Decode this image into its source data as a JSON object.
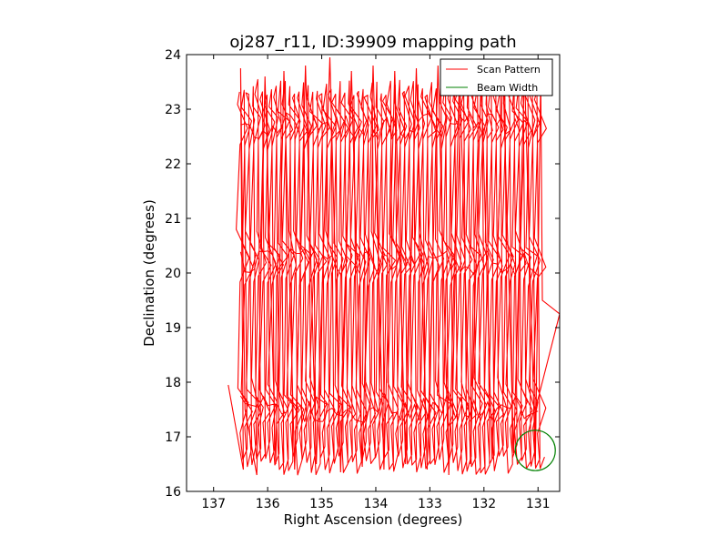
{
  "chart_data": {
    "type": "line",
    "title": "oj287_r11, ID:39909 mapping path",
    "xlabel": "Right Ascension (degrees)",
    "ylabel": "Declination (degrees)",
    "xlim": [
      137.5,
      130.6
    ],
    "ylim": [
      16,
      24
    ],
    "x_inverted": true,
    "xticks": [
      137,
      136,
      135,
      134,
      133,
      132,
      131
    ],
    "yticks": [
      16,
      17,
      18,
      19,
      20,
      21,
      22,
      23,
      24
    ],
    "grid": false,
    "legend_position": "top-right",
    "legend": [
      "Scan Pattern",
      "Beam Width"
    ],
    "series": [
      {
        "name": "Scan Pattern",
        "color": "#ff0000",
        "style": "raster scan",
        "ra_range": [
          136.5,
          131.0
        ],
        "dec_range": [
          16.3,
          23.9
        ],
        "leg_count": 66,
        "points": [
          [
            136.73,
            17.95
          ],
          [
            136.45,
            16.4
          ],
          [
            136.5,
            23.75
          ],
          [
            136.42,
            17.5
          ],
          [
            136.2,
            16.3
          ],
          [
            136.05,
            23.6
          ],
          [
            135.85,
            16.5
          ],
          [
            135.7,
            23.7
          ],
          [
            135.5,
            16.4
          ],
          [
            135.3,
            23.8
          ],
          [
            135.1,
            16.5
          ],
          [
            134.85,
            23.95
          ],
          [
            134.65,
            16.35
          ],
          [
            134.45,
            23.7
          ],
          [
            134.25,
            16.45
          ],
          [
            134.05,
            23.8
          ],
          [
            133.85,
            16.4
          ],
          [
            133.65,
            23.7
          ],
          [
            133.45,
            16.5
          ],
          [
            133.25,
            23.75
          ],
          [
            133.05,
            16.4
          ],
          [
            132.85,
            23.8
          ],
          [
            132.65,
            16.3
          ],
          [
            132.45,
            23.75
          ],
          [
            132.25,
            16.5
          ],
          [
            132.05,
            23.7
          ],
          [
            131.85,
            16.6
          ],
          [
            131.65,
            23.75
          ],
          [
            131.45,
            16.7
          ],
          [
            131.25,
            23.7
          ],
          [
            131.05,
            16.5
          ],
          [
            130.95,
            23.6
          ],
          [
            130.92,
            19.5
          ],
          [
            130.6,
            19.25
          ],
          [
            131.05,
            17.5
          ]
        ]
      },
      {
        "name": "Beam Width",
        "color": "#008000",
        "center": [
          131.05,
          16.75
        ],
        "radius_deg": 0.37
      }
    ]
  }
}
